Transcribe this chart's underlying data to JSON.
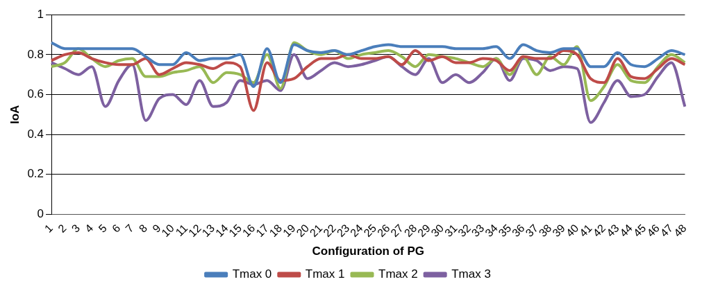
{
  "chart_data": {
    "type": "line",
    "xlabel": "Configuration of PG",
    "ylabel": "IoA",
    "categories": [
      "1",
      "2",
      "3",
      "4",
      "5",
      "6",
      "7",
      "8",
      "9",
      "10",
      "11",
      "12",
      "13",
      "14",
      "15",
      "16",
      "17",
      "18",
      "19",
      "20",
      "21",
      "22",
      "23",
      "24",
      "25",
      "26",
      "27",
      "28",
      "29",
      "30",
      "31",
      "32",
      "33",
      "34",
      "35",
      "36",
      "37",
      "38",
      "39",
      "40",
      "41",
      "42",
      "43",
      "44",
      "45",
      "46",
      "47",
      "48"
    ],
    "series": [
      {
        "name": "Tmax 0",
        "color": "#4a7ebb",
        "values": [
          0.86,
          0.83,
          0.83,
          0.83,
          0.83,
          0.83,
          0.83,
          0.79,
          0.75,
          0.75,
          0.81,
          0.77,
          0.78,
          0.78,
          0.8,
          0.64,
          0.83,
          0.66,
          0.85,
          0.82,
          0.81,
          0.82,
          0.8,
          0.82,
          0.84,
          0.85,
          0.84,
          0.84,
          0.84,
          0.84,
          0.83,
          0.83,
          0.83,
          0.84,
          0.78,
          0.85,
          0.82,
          0.81,
          0.83,
          0.83,
          0.74,
          0.74,
          0.81,
          0.75,
          0.74,
          0.78,
          0.82,
          0.8
        ]
      },
      {
        "name": "Tmax 1",
        "color": "#be4b48",
        "values": [
          0.77,
          0.8,
          0.81,
          0.78,
          0.76,
          0.75,
          0.75,
          0.78,
          0.7,
          0.73,
          0.76,
          0.75,
          0.73,
          0.76,
          0.74,
          0.52,
          0.76,
          0.67,
          0.68,
          0.74,
          0.78,
          0.78,
          0.8,
          0.78,
          0.78,
          0.79,
          0.75,
          0.82,
          0.77,
          0.79,
          0.76,
          0.76,
          0.78,
          0.77,
          0.72,
          0.79,
          0.78,
          0.78,
          0.82,
          0.8,
          0.68,
          0.66,
          0.78,
          0.69,
          0.68,
          0.73,
          0.78,
          0.75
        ]
      },
      {
        "name": "Tmax 2",
        "color": "#98b954",
        "values": [
          0.74,
          0.76,
          0.83,
          0.78,
          0.74,
          0.77,
          0.78,
          0.69,
          0.69,
          0.71,
          0.72,
          0.74,
          0.66,
          0.71,
          0.7,
          0.66,
          0.8,
          0.63,
          0.86,
          0.82,
          0.8,
          0.82,
          0.78,
          0.8,
          0.81,
          0.82,
          0.79,
          0.74,
          0.8,
          0.79,
          0.78,
          0.76,
          0.74,
          0.78,
          0.7,
          0.79,
          0.7,
          0.79,
          0.75,
          0.84,
          0.57,
          0.64,
          0.75,
          0.67,
          0.66,
          0.74,
          0.8,
          0.76
        ]
      },
      {
        "name": "Tmax 3",
        "color": "#7d60a0",
        "values": [
          0.76,
          0.73,
          0.7,
          0.74,
          0.54,
          0.67,
          0.75,
          0.47,
          0.58,
          0.6,
          0.55,
          0.67,
          0.54,
          0.56,
          0.67,
          0.65,
          0.67,
          0.62,
          0.8,
          0.68,
          0.72,
          0.76,
          0.74,
          0.75,
          0.77,
          0.79,
          0.74,
          0.7,
          0.78,
          0.66,
          0.7,
          0.66,
          0.71,
          0.78,
          0.67,
          0.78,
          0.77,
          0.72,
          0.74,
          0.73,
          0.46,
          0.56,
          0.67,
          0.59,
          0.6,
          0.69,
          0.76,
          0.54
        ]
      }
    ],
    "ylim": [
      0,
      1
    ],
    "yticks": [
      0,
      0.2,
      0.4,
      0.6,
      0.8,
      1
    ],
    "grid": "y",
    "legend": "bottom",
    "marker": "none",
    "line_style": "solid"
  }
}
